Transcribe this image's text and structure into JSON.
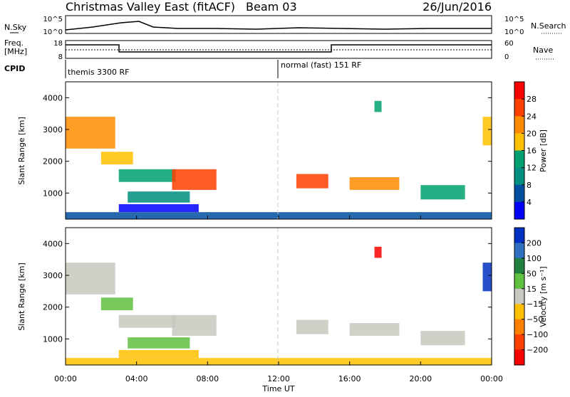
{
  "header": {
    "title": "Christmas Valley East (fitACF)",
    "beam": "Beam 03",
    "date": "26/Jun/2016"
  },
  "nsky_panel": {
    "left_label": "N.Sky",
    "right_label": "N.Search",
    "ticks_left": [
      "10^5",
      "10^0"
    ],
    "ticks_right": [
      "10^5",
      "10^0"
    ]
  },
  "freq_panel": {
    "left_label_1": "Freq.",
    "left_label_2": "[MHz]",
    "right_label": "Nave",
    "ticks_left": [
      "18",
      "8"
    ],
    "ticks_right": [
      "60",
      "0"
    ]
  },
  "cpid": {
    "label": "CPID",
    "segments": [
      {
        "text": "themis 3300 RF",
        "start_hour": 0
      },
      {
        "text": "normal (fast) 151 RF",
        "start_hour": 12
      }
    ]
  },
  "chart_data": [
    {
      "type": "heatmap",
      "name": "power",
      "xlabel": "",
      "ylabel": "Slant Range [km]",
      "xlim": [
        0,
        24
      ],
      "ylim": [
        180,
        4500
      ],
      "x_ticks": [
        "00:00",
        "04:00",
        "08:00",
        "12:00",
        "16:00",
        "20:00",
        "00:00"
      ],
      "y_ticks": [
        1000,
        2000,
        3000,
        4000
      ],
      "colorbar": {
        "label": "Power [dB]",
        "ticks": [
          "28",
          "24",
          "20",
          "16",
          "12",
          "8",
          "4"
        ],
        "colors": [
          "#ff0000",
          "#ff4000",
          "#ff8c00",
          "#ffc000",
          "#00a070",
          "#008f80",
          "#004fa0",
          "#0000ff"
        ]
      },
      "regions": [
        {
          "x": [
            0.0,
            2.8
          ],
          "y": [
            2400,
            3400
          ],
          "level": 2
        },
        {
          "x": [
            2.0,
            3.8
          ],
          "y": [
            1900,
            2300
          ],
          "level": 3
        },
        {
          "x": [
            3.0,
            6.2
          ],
          "y": [
            1350,
            1750
          ],
          "level": 4
        },
        {
          "x": [
            6.0,
            8.5
          ],
          "y": [
            1100,
            1750
          ],
          "level": 1
        },
        {
          "x": [
            3.0,
            7.5
          ],
          "y": [
            400,
            650
          ],
          "level": 7
        },
        {
          "x": [
            3.5,
            7.0
          ],
          "y": [
            700,
            1050
          ],
          "level": 5
        },
        {
          "x": [
            0.0,
            24.0
          ],
          "y": [
            180,
            400
          ],
          "level": 6
        },
        {
          "x": [
            13.0,
            14.8
          ],
          "y": [
            1150,
            1600
          ],
          "level": 1
        },
        {
          "x": [
            16.0,
            18.8
          ],
          "y": [
            1100,
            1500
          ],
          "level": 2
        },
        {
          "x": [
            20.0,
            22.5
          ],
          "y": [
            800,
            1250
          ],
          "level": 4
        },
        {
          "x": [
            17.4,
            17.8
          ],
          "y": [
            3550,
            3900
          ],
          "level": 4
        },
        {
          "x": [
            23.5,
            24.0
          ],
          "y": [
            2500,
            3400
          ],
          "level": 3
        }
      ]
    },
    {
      "type": "heatmap",
      "name": "velocity",
      "xlabel": "Time UT",
      "ylabel": "Slant Range [km]",
      "xlim": [
        0,
        24
      ],
      "ylim": [
        180,
        4500
      ],
      "x_ticks": [
        "00:00",
        "04:00",
        "08:00",
        "12:00",
        "16:00",
        "20:00",
        "00:00"
      ],
      "y_ticks": [
        1000,
        2000,
        3000,
        4000
      ],
      "colorbar": {
        "label": "Velocity [m s⁻¹]",
        "ticks": [
          "200",
          "100",
          "50",
          "15",
          "−15",
          "−50",
          "−100",
          "−200"
        ],
        "colors": [
          "#0030c0",
          "#3070c0",
          "#208040",
          "#60c040",
          "#c8c8c0",
          "#ffc000",
          "#ff8000",
          "#ff4000",
          "#ff0000"
        ]
      },
      "regions": [
        {
          "x": [
            0.0,
            2.8
          ],
          "y": [
            2400,
            3400
          ],
          "level": 4
        },
        {
          "x": [
            2.0,
            3.8
          ],
          "y": [
            1900,
            2300
          ],
          "level": 3
        },
        {
          "x": [
            3.0,
            6.2
          ],
          "y": [
            1350,
            1750
          ],
          "level": 4
        },
        {
          "x": [
            6.0,
            8.5
          ],
          "y": [
            1100,
            1750
          ],
          "level": 4
        },
        {
          "x": [
            3.0,
            7.5
          ],
          "y": [
            400,
            650
          ],
          "level": 5
        },
        {
          "x": [
            3.5,
            7.0
          ],
          "y": [
            700,
            1050
          ],
          "level": 3
        },
        {
          "x": [
            0.0,
            24.0
          ],
          "y": [
            180,
            400
          ],
          "level": 5
        },
        {
          "x": [
            13.0,
            14.8
          ],
          "y": [
            1150,
            1600
          ],
          "level": 4
        },
        {
          "x": [
            16.0,
            18.8
          ],
          "y": [
            1100,
            1500
          ],
          "level": 4
        },
        {
          "x": [
            20.0,
            22.5
          ],
          "y": [
            800,
            1250
          ],
          "level": 4
        },
        {
          "x": [
            17.4,
            17.8
          ],
          "y": [
            3550,
            3900
          ],
          "level": 8
        },
        {
          "x": [
            23.5,
            24.0
          ],
          "y": [
            2500,
            3400
          ],
          "level": 0
        }
      ]
    }
  ]
}
